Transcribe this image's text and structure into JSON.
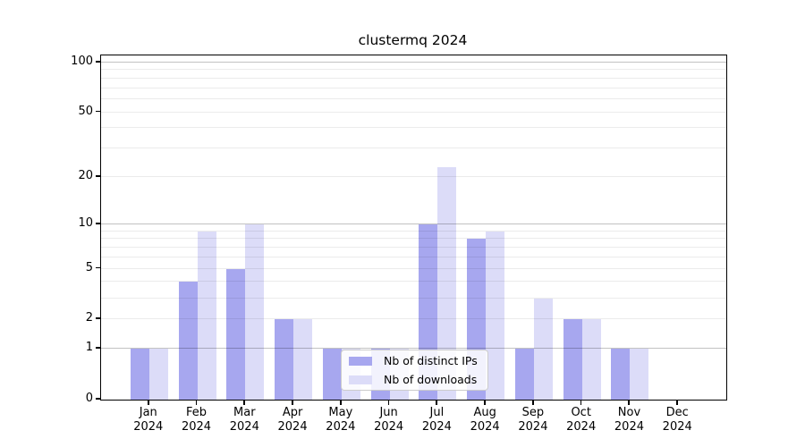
{
  "title": "clustermq 2024",
  "colors": {
    "ips": "#a7a7ef",
    "downloads": "#dcdcf8",
    "spine": "#000000",
    "legend_border": "#cccccc"
  },
  "legend": {
    "items": [
      {
        "id": "ips",
        "label": "Nb of distinct IPs"
      },
      {
        "id": "downloads",
        "label": "Nb of downloads"
      }
    ]
  },
  "chart_data": {
    "type": "bar",
    "title": "clustermq 2024",
    "yscale": "log1p",
    "ylim": [
      0,
      110
    ],
    "y_ticks": [
      0,
      1,
      2,
      5,
      10,
      20,
      50,
      100
    ],
    "grid": "horizontal",
    "legend_position": "inside-bottom-center",
    "categories": [
      "Jan 2024",
      "Feb 2024",
      "Mar 2024",
      "Apr 2024",
      "May 2024",
      "Jun 2024",
      "Jul 2024",
      "Aug 2024",
      "Sep 2024",
      "Oct 2024",
      "Nov 2024",
      "Dec 2024"
    ],
    "series": [
      {
        "name": "Nb of distinct IPs",
        "values": [
          1,
          4,
          5,
          2,
          1,
          1,
          10,
          8,
          1,
          2,
          1,
          0
        ]
      },
      {
        "name": "Nb of downloads",
        "values": [
          1,
          9,
          10,
          2,
          1,
          1,
          23,
          9,
          3,
          2,
          1,
          0
        ]
      }
    ]
  }
}
